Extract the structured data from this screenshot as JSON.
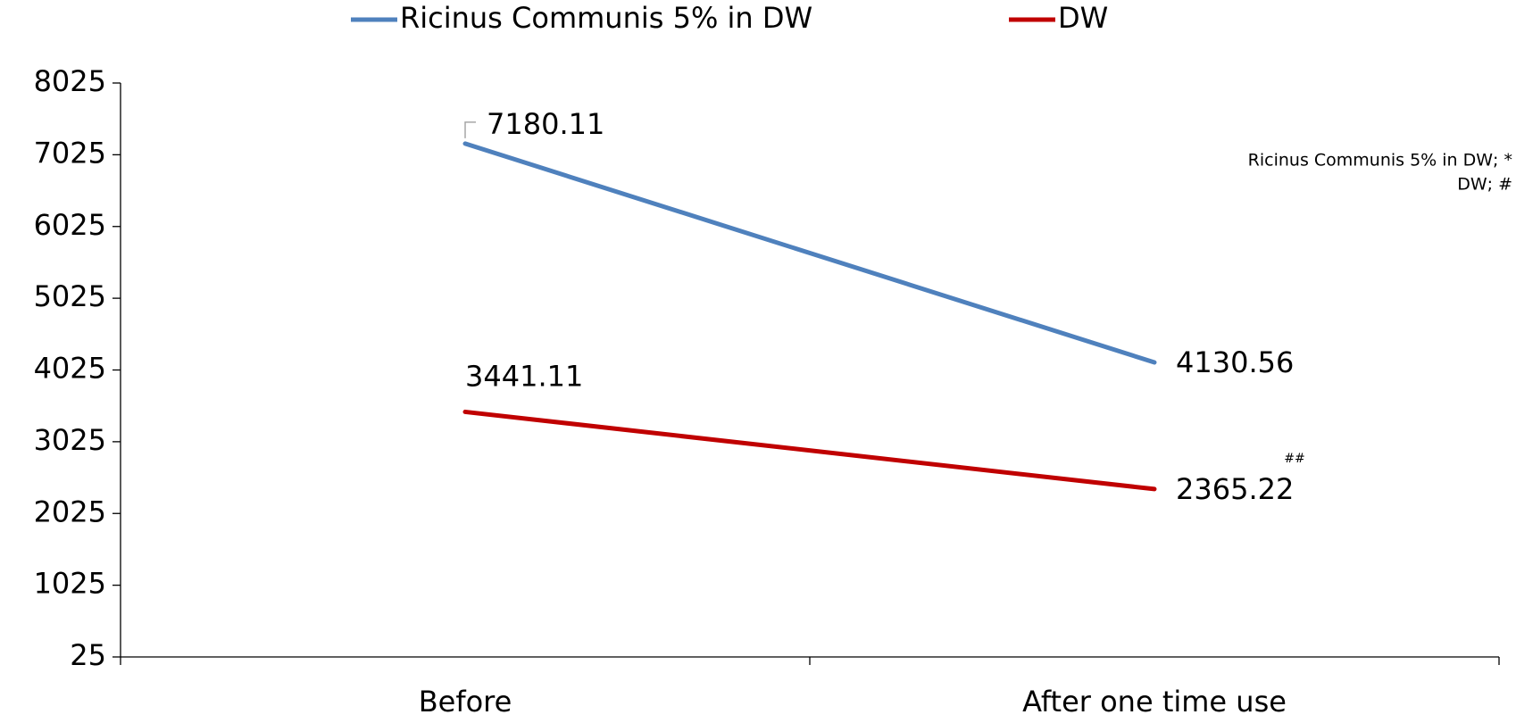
{
  "chart_data": {
    "type": "line",
    "categories": [
      "Before",
      "After one time use"
    ],
    "series": [
      {
        "name": "Ricinus Communis 5% in DW",
        "color": "#4f81bd",
        "values": [
          7180.11,
          4130.56
        ]
      },
      {
        "name": "DW",
        "color": "#c00000",
        "values": [
          3441.11,
          2365.22
        ]
      }
    ],
    "ylim": [
      25,
      8025
    ],
    "yticks": [
      25,
      1025,
      2025,
      3025,
      4025,
      5025,
      6025,
      7025,
      8025
    ],
    "annotations": [
      "Ricinus Communis 5% in DW; *",
      "DW; #",
      "##"
    ],
    "legend": "top"
  }
}
